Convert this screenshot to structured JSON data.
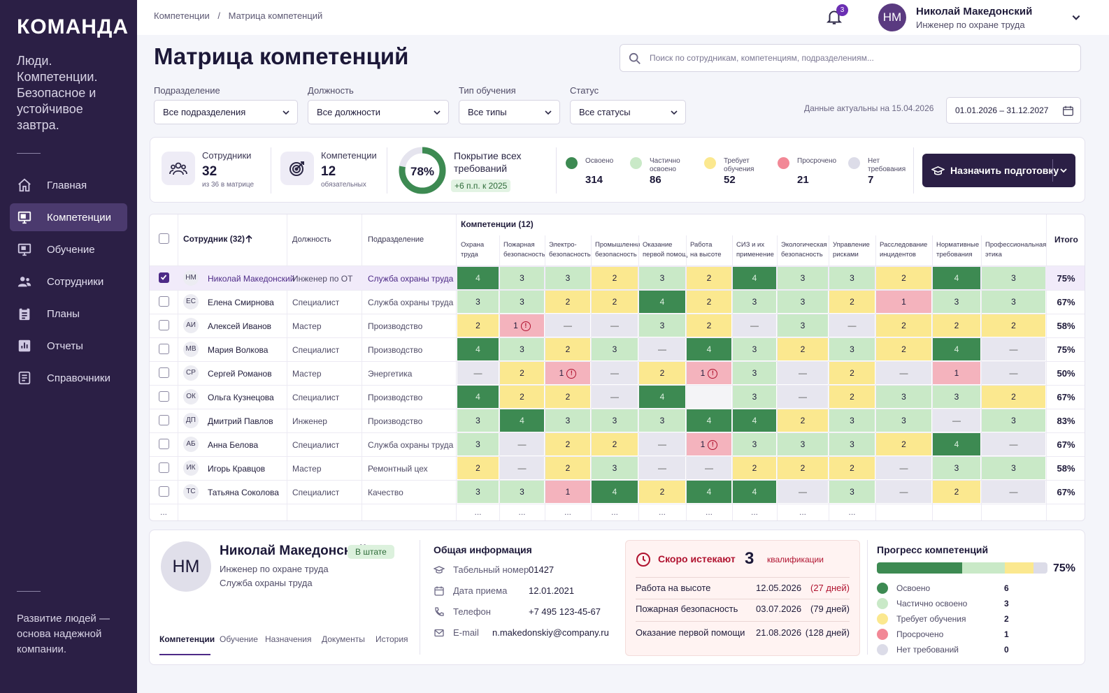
{
  "brand": {
    "logo": "КОМАНДА",
    "tagline": "Люди. Компетенции. Безопасное и устойчивое завтра.",
    "footer": "Развитие людей — основа надежной компании."
  },
  "nav": [
    {
      "label": "Главная",
      "icon": "home-icon"
    },
    {
      "label": "Компетенции",
      "icon": "monitor-icon",
      "active": true
    },
    {
      "label": "Обучение",
      "icon": "presentation-icon"
    },
    {
      "label": "Сотрудники",
      "icon": "people-icon"
    },
    {
      "label": "Планы",
      "icon": "clipboard-icon"
    },
    {
      "label": "Отчеты",
      "icon": "chart-icon"
    },
    {
      "label": "Справочники",
      "icon": "directory-icon"
    }
  ],
  "breadcrumb": [
    "Компетенции",
    "/",
    "Матрица компетенций"
  ],
  "notifications_count": "3",
  "user": {
    "initials": "НМ",
    "name": "Николай Македонский",
    "role": "Инженер по охране труда"
  },
  "page_title": "Матрица компетенций",
  "search_placeholder": "Поиск по сотрудникам, компетенциям, подразделениям...",
  "filters": [
    {
      "label": "Подразделение",
      "value": "Все подразделения"
    },
    {
      "label": "Должность",
      "value": "Все должности"
    },
    {
      "label": "Тип обучения",
      "value": "Все типы"
    },
    {
      "label": "Статус",
      "value": "Все статусы"
    }
  ],
  "as_of": "Данные актуальны на 15.04.2026",
  "date_range": "01.01.2026 – 31.12.2027",
  "stats": {
    "employees": {
      "label": "Сотрудники",
      "value": "32",
      "sub": "из 36 в матрице"
    },
    "competencies": {
      "label": "Компетенции",
      "value": "12",
      "sub": "обязательных"
    },
    "coverage": {
      "label": "Покрытие всех требований",
      "value": "78%",
      "percent": 78,
      "delta": "+6 п.п. к 2025"
    }
  },
  "legend": [
    {
      "label": "Освоено",
      "value": "314",
      "color": "#3d8a52"
    },
    {
      "label": "Частично освоено",
      "value": "86",
      "color": "#c9e9c7"
    },
    {
      "label": "Требует обучения",
      "value": "52",
      "color": "#fbe88f"
    },
    {
      "label": "Просрочено",
      "value": "21",
      "color": "#f28896"
    },
    {
      "label": "Нет требования",
      "value": "7",
      "color": "#dcdce8"
    }
  ],
  "assign_button": "Назначить подготовку",
  "matrix": {
    "col_employee": "Сотрудник (32)",
    "col_position": "Должность",
    "col_department": "Подразделение",
    "competency_group": "Компетенции (12)",
    "col_total": "Итого",
    "competencies": [
      [
        "Охрана",
        "труда"
      ],
      [
        "Пожарная",
        "безопасность"
      ],
      [
        "Электро-",
        "безопасность"
      ],
      [
        "Промышленная",
        "безопасность"
      ],
      [
        "Оказание",
        "первой помощи"
      ],
      [
        "Работа",
        "на высоте"
      ],
      [
        "СИЗ и их",
        "применение"
      ],
      [
        "Экологическая",
        "безопасность"
      ],
      [
        "Управление",
        "рисками"
      ],
      [
        "Расследование",
        "инцидентов"
      ],
      [
        "Нормативные",
        "требования"
      ],
      [
        "Профессиональная",
        "этика"
      ]
    ],
    "rows": [
      {
        "initials": "НМ",
        "name": "Николай Македонский",
        "position": "Инженер по ОТ",
        "department": "Служба охраны труда",
        "selected": true,
        "total": "75%",
        "cells": [
          "4",
          "3",
          "3",
          "2",
          "3",
          "2",
          "4",
          "3",
          "3",
          "2",
          "4",
          "3"
        ]
      },
      {
        "initials": "ЕС",
        "name": "Елена Смирнова",
        "position": "Специалист",
        "department": "Служба охраны труда",
        "total": "67%",
        "cells": [
          "3",
          "3",
          "2",
          "2",
          "4",
          "2",
          "3",
          "3",
          "2",
          "1",
          "3",
          "3"
        ]
      },
      {
        "initials": "АИ",
        "name": "Алексей Иванов",
        "position": "Мастер",
        "department": "Производство",
        "total": "58%",
        "cells": [
          "2",
          "1!",
          "—",
          "—",
          "3",
          "2",
          "—",
          "3",
          "—",
          "2",
          "2",
          "2"
        ]
      },
      {
        "initials": "МВ",
        "name": "Мария Волкова",
        "position": "Специалист",
        "department": "Производство",
        "total": "75%",
        "cells": [
          "4",
          "3",
          "2",
          "3",
          "—",
          "4",
          "3",
          "2",
          "3",
          "2",
          "4",
          "—"
        ]
      },
      {
        "initials": "СР",
        "name": "Сергей Романов",
        "position": "Мастер",
        "department": "Энергетика",
        "total": "50%",
        "cells": [
          "—",
          "2",
          "1!",
          "—",
          "2",
          "1!",
          "3",
          "—",
          "2",
          "—",
          "1",
          "—"
        ]
      },
      {
        "initials": "ОК",
        "name": "Ольга Кузнецова",
        "position": "Специалист",
        "department": "Производство",
        "total": "67%",
        "cells": [
          "4",
          "2",
          "2",
          "—",
          "4",
          "",
          "3",
          "—",
          "2",
          "3",
          "3",
          "2"
        ]
      },
      {
        "initials": "ДП",
        "name": "Дмитрий Павлов",
        "position": "Инженер",
        "department": "Производство",
        "total": "83%",
        "cells": [
          "3",
          "4",
          "3",
          "3",
          "3",
          "4",
          "4",
          "2",
          "3",
          "3",
          "—",
          "3"
        ]
      },
      {
        "initials": "АБ",
        "name": "Анна Белова",
        "position": "Специалист",
        "department": "Служба охраны труда",
        "total": "67%",
        "cells": [
          "3",
          "—",
          "2",
          "2",
          "—",
          "1!",
          "3",
          "3",
          "3",
          "2",
          "4",
          "—"
        ]
      },
      {
        "initials": "ИК",
        "name": "Игорь Кравцов",
        "position": "Мастер",
        "department": "Ремонтный цех",
        "total": "58%",
        "cells": [
          "2",
          "—",
          "2",
          "3",
          "—",
          "—",
          "2",
          "2",
          "2",
          "—",
          "3",
          "3"
        ]
      },
      {
        "initials": "ТС",
        "name": "Татьяна Соколова",
        "position": "Специалист",
        "department": "Качество",
        "total": "67%",
        "cells": [
          "3",
          "3",
          "1",
          "4",
          "2",
          "4",
          "4",
          "—",
          "3",
          "—",
          "2",
          "—"
        ]
      }
    ],
    "more": "..."
  },
  "profile": {
    "initials": "НМ",
    "name": "Николай Македонский",
    "status": "В штате",
    "role": "Инженер по охране труда",
    "department": "Служба охраны труда",
    "tabs": [
      "Компетенции",
      "Обучение",
      "Назначения",
      "Документы",
      "История"
    ],
    "info_title": "Общая информация",
    "info": [
      {
        "label": "Табельный номер",
        "value": "01427",
        "icon": "badge-icon"
      },
      {
        "label": "Дата приема",
        "value": "12.01.2021",
        "icon": "calendar-icon"
      },
      {
        "label": "Телефон",
        "value": "+7 495 123-45-67",
        "icon": "phone-icon"
      },
      {
        "label": "E-mail",
        "value": "n.makedonskiy@company.ru",
        "icon": "mail-icon"
      }
    ],
    "expiring": {
      "title": "Скоро истекают",
      "count": "3",
      "unit": "квалификации",
      "items": [
        {
          "name": "Работа на высоте",
          "date": "12.05.2026",
          "days": "(27 дней)",
          "urgent": true
        },
        {
          "name": "Пожарная безопасность",
          "date": "03.07.2026",
          "days": "(79 дней)"
        },
        {
          "name": "Оказание первой помощи",
          "date": "21.08.2026",
          "days": "(128 дней)"
        }
      ]
    },
    "progress": {
      "title": "Прогресс компетенций",
      "percent": "75%",
      "items": [
        {
          "label": "Освоено",
          "value": "6",
          "color": "#3d8a52"
        },
        {
          "label": "Частично освоено",
          "value": "3",
          "color": "#c9e9c7"
        },
        {
          "label": "Требует обучения",
          "value": "2",
          "color": "#fbe88f"
        },
        {
          "label": "Просрочено",
          "value": "1",
          "color": "#f28896"
        },
        {
          "label": "Нет требований",
          "value": "0",
          "color": "#dcdce8"
        }
      ]
    }
  }
}
